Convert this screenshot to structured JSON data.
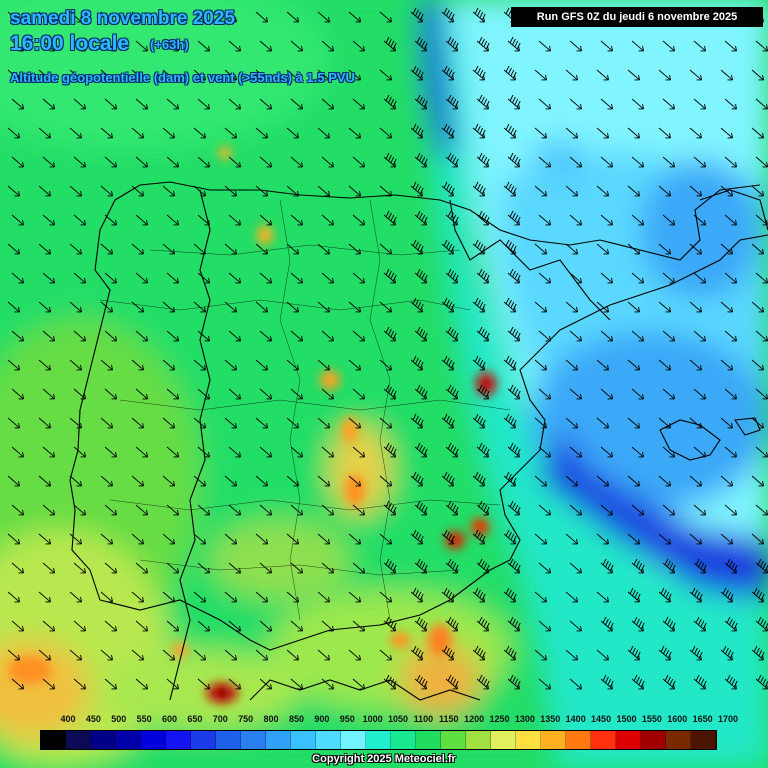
{
  "header": {
    "date": "samedi 8 novembre 2025",
    "time": "16:00 locale",
    "offset": "(+63h)",
    "parameter": "Altitude géopotentielle (dam) et vent (>55nds) à 1.5 PVU"
  },
  "run_info": "Run GFS 0Z du jeudi 6 novembre 2025",
  "legend": {
    "labels": [
      "400",
      "450",
      "500",
      "550",
      "600",
      "650",
      "700",
      "750",
      "800",
      "850",
      "900",
      "950",
      "1000",
      "1050",
      "1100",
      "1150",
      "1200",
      "1250",
      "1300",
      "1350",
      "1400",
      "1450",
      "1500",
      "1550",
      "1600",
      "1650",
      "1700"
    ],
    "colors": [
      "#000000",
      "#0a0a55",
      "#000088",
      "#0000aa",
      "#0000dd",
      "#1414f0",
      "#1a3ce8",
      "#1e60e8",
      "#2a80f0",
      "#30a0f8",
      "#38c0ff",
      "#50dcff",
      "#70f4ff",
      "#20eecc",
      "#18e890",
      "#20dd60",
      "#60e040",
      "#a0e040",
      "#e0f060",
      "#ffe040",
      "#ffb020",
      "#ff7a10",
      "#ff3010",
      "#dd0000",
      "#a00000",
      "#7a2a00",
      "#4a1400"
    ]
  },
  "copyright": "Copyright 2025 Meteociel.fr"
}
